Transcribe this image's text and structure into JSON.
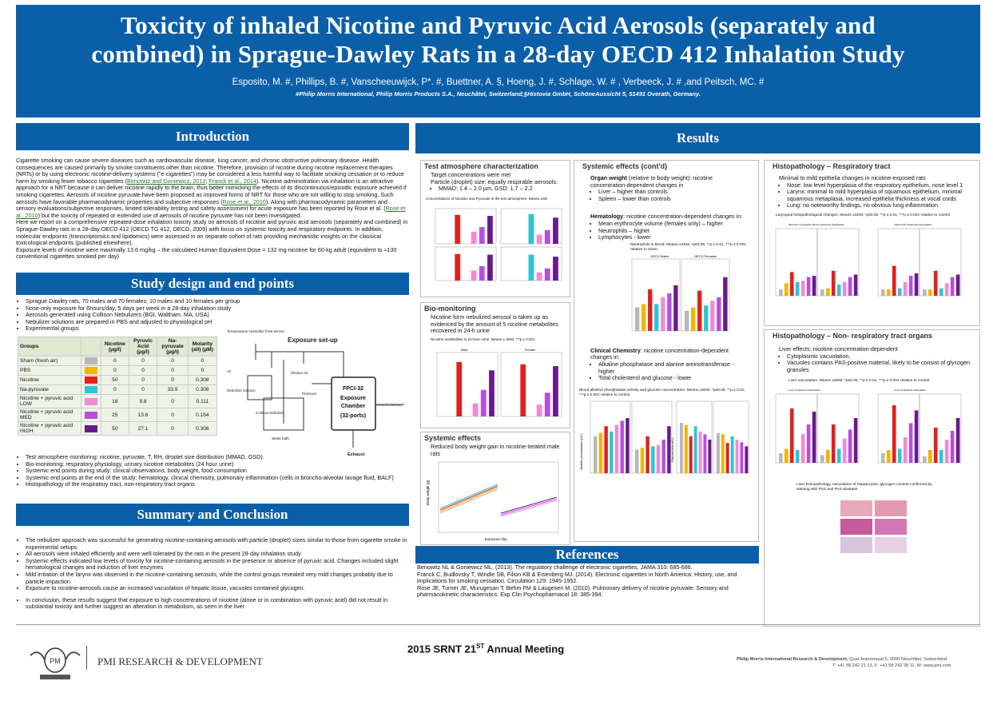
{
  "banner": {
    "title_line1": "Toxicity of inhaled Nicotine and Pyruvic Acid Aerosols (separately and",
    "title_line2": "combined) in Sprague-Dawley Rats in a 28-day OECD 412 Inhalation Study",
    "authors": "Esposito, M. #, Phillips, B. #, Vanscheeuwijck, P*. #, Buettner, A. §, Hoeng, J. #, Schlage, W. # , Verbeeck, J. # ,and Peitsch, MC. #",
    "affiliations": "#Philip Morris International, Philip Morris Products S.A., Neuchâtel, Switzerland;§Histovia GmbH, SchöneAussicht 5, 51491 Overath, Germany."
  },
  "introduction": {
    "heading": "Introduction",
    "p1_a": "Cigarette smoking can cause severe diseases such as cardiovascular disease, lung cancer, and chronic obstructive pulmonary disease. Health consequences are caused primarily by smoke constituents other than nicotine. Therefore, provision of nicotine during nicotine replacement therapies (NRTs) or by using electronic nicotine-delivery systems (\"e-cigarettes\") may be considered a less harmful way to facilitate smoking cessation or to reduce harm by smoking fewer tobacco cigarettes (",
    "cite1": "Benowitz and Goniewicz, 2013",
    "cite2": "Franck et al., 2014",
    "p1_b": "). Nicotine administration via inhalation is an attractive approach for a NRT because it can deliver nicotine rapidly to the brain, thus better mimicking the effects of its discontinuous/episodic exposure achieved if smoking cigarettes. Aerosols of nicotine pyruvate have been proposed as improved forms of NRT for those who are not willing to stop smoking. Such aerosols have favorable pharmacodynamic properties and subjective responses (",
    "cite3": "Rose et al., 2010",
    "p1_c": "). Along with pharmacodynamic parameters and sensory evaluations/subjective responses, limited tolerability testing and safety assessment for acute exposure has been reported by Rose et al. (",
    "cite4": "Rose et al., 2010",
    "p1_d": ") but the toxicity of repeated or extended use of aerosols of nicotine pyruvate has not been investigated.",
    "p2": "Here we report on a comprehensive repeated-dose inhalation toxicity study on aerosols of nicotine and pyruvic acid aerosols (separately and combined) in Sprague-Dawley rats in a 28-day OECD 412 (OECD TG 412, OECD, 2009) with focus on systemic toxicity and respiratory endpoints. In addition, molecular endpoints (transcriptomics and lipidomics) were assessed in an separate cohort of rats providing mechanistic insights on the classical toxicological endpoints (published elsewhere).",
    "p3": "Exposure levels of nicotine were maximally 13.6 mg/kg – the calculated Human Equivalent Dose = 132 mg nicotine for 60-kg adult (equivalent to ≈130 conventional cigarettes smoked per day)"
  },
  "study": {
    "heading": "Study design and end points",
    "bullets": [
      "Sprague Dawley rats, 70 males and 70 females; 10 males and 10 females per group",
      "Nose-only exposure for 6hours/day, 5 days per week in a 28-day inhalation study",
      "Aerosols generated using Collison Nebulizers (BGI, Waltham, MA, USA)",
      "Nebulizer solutions are prepared in PBS and adjusted to physiological pH",
      "Experimental groups:"
    ],
    "table_headers": [
      "Groups",
      "",
      "Nicotine (µg/l)",
      "Pyruvic Acid (µg/l)",
      "Na-pyruvate (µg/l)",
      "Molarity (all) (µM)"
    ],
    "table_rows": [
      {
        "group": "Sham (fresh air)",
        "color": "#b8b8b8",
        "nic": "0",
        "pyr": "0",
        "napyr": "0",
        "mol": "0"
      },
      {
        "group": "PBS",
        "color": "#f5b400",
        "nic": "0",
        "pyr": "0",
        "napyr": "0",
        "mol": "0"
      },
      {
        "group": "Nicotine",
        "color": "#e2211c",
        "nic": "50",
        "pyr": "0",
        "napyr": "0",
        "mol": "0.308"
      },
      {
        "group": "Na-pyruvate",
        "color": "#2ec4d6",
        "nic": "0",
        "pyr": "0",
        "napyr": "33.9",
        "mol": "0.308"
      },
      {
        "group": "Nicotine + pyruvic acid LOW",
        "color": "#f08ad8",
        "nic": "18",
        "pyr": "9.8",
        "napyr": "0",
        "mol": "0.111"
      },
      {
        "group": "Nicotine + pyruvic acid MED",
        "color": "#b64fdd",
        "nic": "25",
        "pyr": "13.6",
        "napyr": "0",
        "mol": "0.154"
      },
      {
        "group": "Nicotine + pyruvic acid HIGH",
        "color": "#6a1a8c",
        "nic": "50",
        "pyr": "27.1",
        "napyr": "0",
        "mol": "0.308"
      }
    ],
    "setup_labels": {
      "title": "Exposure set-up",
      "temp": "Temperature/ Humidity/ Flow sensor",
      "air": "Air",
      "dilution": "Dilution air",
      "nebulizer": "Collison Nebulizer",
      "solution": "Nebulizer solution",
      "pressure": "Pressure",
      "water": "Water bath",
      "chamber1": "FPCI-32",
      "chamber2": "Exposure",
      "chamber3": "Chamber",
      "chamber4": "(32-ports)",
      "exhaust": "Exhaust",
      "sample": "Aerosols collection"
    },
    "bullets2": [
      "Test atmosphere monitoring: nicotine, pyruvate, T, RH, droplet size distribution (MMAD, GSD)",
      "Bio-monitoring: respiratory physiology, urinary nicotine metabolites (24 hour urine)",
      "Systemic end points during study: clinical observations, body weight, food consumption",
      "Systemic end points at the end of the study: hematology, clinical chemistry, pulmonary inflammation (cells in broncho-alveolar lavage fluid, BALF)",
      "Histopathology of the respiratory tract, non-respiratory tract organs"
    ]
  },
  "summary": {
    "heading": "Summary and Conclusion",
    "bullets": [
      "The nebulizer approach was successful for generating nicotine-containing aerosols with particle (droplet) sizes similar to those from cigarette smoke in experimental setups",
      "All aerosols were inhaled efficiently and were well tolerated by the rats in the present 28-day inhalation study",
      "Systemic effects indicated low levels of toxicity for nicotine-containing aerosols in the presence or absence of pyruvic acid. Changes included slight hematological changes and induction of liver enzymes",
      "Mild irritation of the larynx was observed in the nicotine-containing aerosols, while the control groups revealed very mild changes probably due to particle impaction",
      "Exposure to nicotine-aerosols cause an increased vacuolation of hepatic tissue, vacuoles contained glycogen."
    ],
    "conclusion": "In conclusion, these results suggest that exposure to high concentrations of nicotine (alone or in combination with pyruvic acid) did not result in substantial toxicity and further suggest an alteration in metabolism, as seen in the liver"
  },
  "results": {
    "heading": "Results",
    "test_atm": {
      "title": "Test atmosphere characterization",
      "line1": "Target concentrations were met",
      "line2": "Particle (droplet) size: equally respirable aerosols:",
      "bullet": "MMAD: 1.4 – 2.0 µm, GSD: 1.7 – 2.2",
      "chart_caption": "Concentrations of Nicotine and Pyruvate in the test atmosphere. Means ±SD"
    },
    "biomon": {
      "title": "Bio-monitoring",
      "text": "Nicotine form nebulized aerosol is taken up as evidenced by the amount of 5 nicotine metabolites recovered in 24-h urine",
      "caption": "Nicotine metabolites in 24-hour urine. Means ± SEM; ***p ≤ 0.001",
      "facet_left": "Male",
      "facet_right": "Female"
    },
    "systemic": {
      "title": "Systemic effects",
      "text": "Reduced body weight gain in nicotine-treated male rats",
      "xlabel": "Exposure day",
      "ylabel": "Body weight (g)"
    },
    "systemic2": {
      "title": "Systemic effects (cont'd)",
      "organ_bold": "Organ weight",
      "organ_rest": " (relative to body weight): nicotine concentration-dependent changes in",
      "organ_bullets": [
        "Liver – higher than controls",
        "Spleen – lower than controls"
      ],
      "hema_bold": "Hematology",
      "hema_rest": ": nicotine concentration-dependent changes in:",
      "hema_bullets": [
        "Mean erythrocyte volume  (females only) – higher",
        "Neutrophils – higher",
        "Lymphocytes - lower"
      ],
      "neut_caption": "Neutrophils in blood. Means ±SEM; *p≤0.05, **p ≤ 0.01, ***p ≤ 0.001 relative to sham",
      "neut_facet_left": "OECD Males",
      "neut_facet_right": "OECD Females",
      "clin_bold": "Clinical Chemistry",
      "clin_rest": ": nicotine concentration-dependent changes in:",
      "clin_bullets": [
        "Alkaline phosphatase and alanine aminotransferase - higher",
        "Total cholesterol and glucose - lower"
      ],
      "alk_caption": "Blood alkaline phosphatase activity and glucose concentration. Means ±SEM; *p≤0.05, **p ≤ 0.01, ***p ≤ 0.001 relative to control",
      "alk_ylabel": "Alkaline phosphatase (U/L)",
      "glu_ylabel": "Glucose (mmol/L)"
    },
    "histo_resp": {
      "title": "Histopathology – Respiratory tract",
      "intro": "Minimal to mild epithelia changes in nicotine-exposed rats",
      "bullets": [
        "Nose: low level hyperplasia of the respiratory epithelium, nose level 1",
        "Larynx: minimal to mild hyperplasia of squamous epithelium, minimal squamous metaplasia, increased epithelia thickness at vocal cords",
        "Lung: no noteworthy findings, no obvious lung inflammation"
      ],
      "caption": "Laryngeal histopathological changes. Means ±SEM; *p≤0.05, **p ≤ 0.01, ***p ≤ 0.001 relative to control",
      "chart1_title": "Mid base of epiglottis Ventral squamous hyperplasia",
      "chart2_title": "Vocal cords Squamous hyperplasia",
      "male": "Male",
      "female": "Female"
    },
    "histo_nonresp": {
      "title": "Histopathology – Non- respiratory tract organs",
      "intro": "Liver effects: nicotine concentration-dependent",
      "bullets": [
        "Cytoplasmic vacuolation,",
        "Vacuoles contains PAS-positive material, likely to be consist of glycogen granules"
      ],
      "caption": "Liver vacuolation. Means ±SEM; *p≤0.05, **p ≤ 0.01, ***p ≤ 0.001 relative to control",
      "chart1_title": "Liver Cytoplasmic Vacuolation",
      "chart2_title": "Liver Cytoplasmic Vacuolation",
      "caption2": "Liver histopathology, vacuolation of hepatocytes; glycogen content confirmed by staining with PAS and PAS-diastase"
    }
  },
  "references": {
    "heading": "References",
    "items": [
      "Benowitz NL & Goniewicz ML. (2013). The regulatory challenge of electronic cigarettes. JAMA 310: 685-686.",
      "Franck C, Budlovsky T, Windle SB, Filion KB & Eisenberg MJ. (2014). Electronic cigarettes in North America: History, use, and implications for smoking cessation. Circulation 129: 1945-1952.",
      "Rose JE, Turner JE, Murugesan T, Behm FM & Laugesen M. (2010). Pulmonary delivery of nicotine pyruvate: Sensory and pharmacokinetic characteristics. Exp Clin Psychopharmacol 18: 385-394."
    ]
  },
  "footer": {
    "logo_text": "PMI RESEARCH & DEVELOPMENT",
    "meeting_a": "2015 SRNT 21",
    "meeting_sup": "ST",
    "meeting_b": " Annual Meeting",
    "address_bold": "Philip Morris International Research & Development,",
    "address_rest": " Quai Jeanrenaud 5, 2000 Neuchâtel, Switzerland",
    "phone": "T: +41 58 242 21 13, F: +41 58 242 28 11, W: www.pmi.com"
  }
}
